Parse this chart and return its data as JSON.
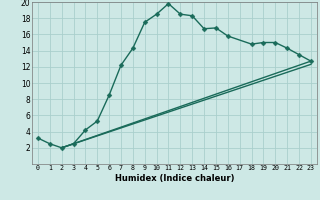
{
  "title": "",
  "xlabel": "Humidex (Indice chaleur)",
  "bg_color": "#cde8e5",
  "line_color": "#1a6b5a",
  "grid_color": "#aacfcc",
  "grid_minor_color": "#c5e0de",
  "xlim": [
    -0.5,
    23.5
  ],
  "ylim": [
    0,
    20
  ],
  "xticks": [
    0,
    1,
    2,
    3,
    4,
    5,
    6,
    7,
    8,
    9,
    10,
    11,
    12,
    13,
    14,
    15,
    16,
    17,
    18,
    19,
    20,
    21,
    22,
    23
  ],
  "yticks": [
    2,
    4,
    6,
    8,
    10,
    12,
    14,
    16,
    18,
    20
  ],
  "line1_x": [
    0,
    1,
    2,
    3,
    4,
    5,
    6,
    7,
    8,
    9,
    10,
    11,
    12,
    13,
    14,
    15,
    16,
    18,
    19,
    20,
    21,
    22,
    23
  ],
  "line1_y": [
    3.2,
    2.5,
    2.0,
    2.5,
    4.2,
    5.3,
    8.5,
    12.2,
    14.3,
    17.5,
    18.5,
    19.8,
    18.5,
    18.3,
    16.7,
    16.8,
    15.8,
    14.8,
    15.0,
    15.0,
    14.3,
    13.5,
    12.7
  ],
  "line2_x": [
    2,
    23
  ],
  "line2_y": [
    2.0,
    12.7
  ],
  "line3_x": [
    2,
    23
  ],
  "line3_y": [
    2.0,
    12.3
  ],
  "marker": "D",
  "markersize": 2.5,
  "linewidth": 1.0
}
